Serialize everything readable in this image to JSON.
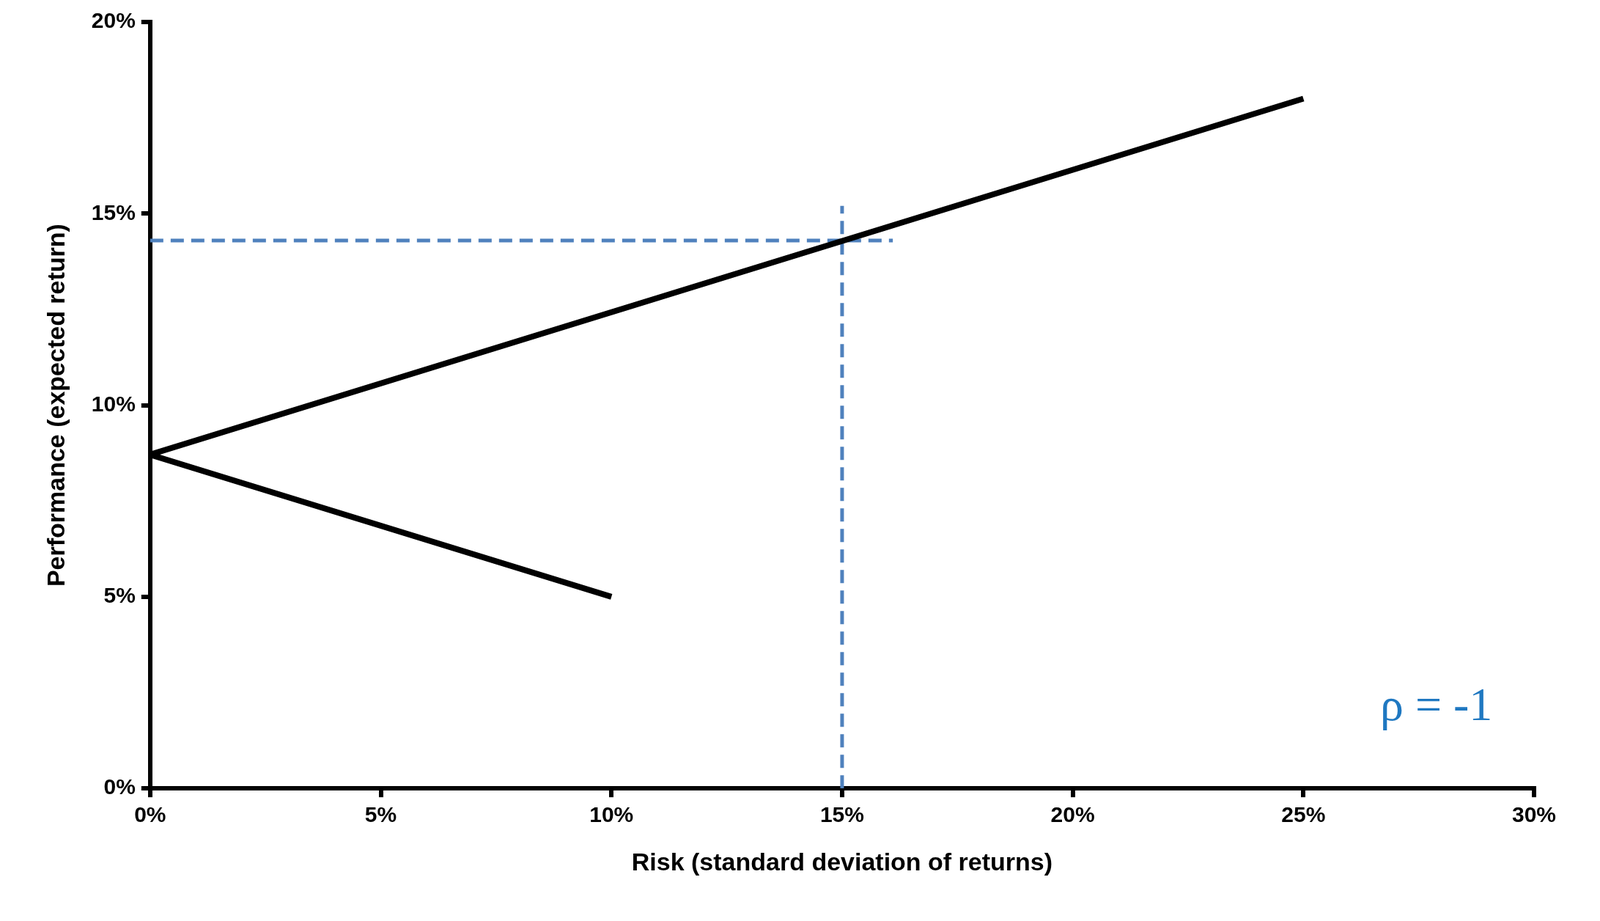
{
  "chart_data": {
    "type": "line",
    "x_label": "Risk (standard deviation of returns)",
    "y_label": "Performance (expected return)",
    "xlim": [
      0,
      30
    ],
    "ylim": [
      0,
      20
    ],
    "xticks": [
      {
        "value": 0,
        "label": "0%"
      },
      {
        "value": 5,
        "label": "5%"
      },
      {
        "value": 10,
        "label": "10%"
      },
      {
        "value": 15,
        "label": "15%"
      },
      {
        "value": 20,
        "label": "20%"
      },
      {
        "value": 25,
        "label": "25%"
      },
      {
        "value": 30,
        "label": "30%"
      }
    ],
    "yticks": [
      {
        "value": 0,
        "label": "0%"
      },
      {
        "value": 5,
        "label": "5%"
      },
      {
        "value": 10,
        "label": "10%"
      },
      {
        "value": 15,
        "label": "15%"
      },
      {
        "value": 20,
        "label": "20%"
      }
    ],
    "grid": false,
    "series": [
      {
        "color": "#000000",
        "line_style": "solid",
        "marker": "none",
        "x": [
          10,
          0,
          25
        ],
        "values": [
          5,
          8.71,
          18
        ]
      },
      {
        "color": "#4f81bd",
        "line_style": "dashed",
        "marker": "none",
        "x": [
          15,
          15
        ],
        "values": [
          0,
          15.2
        ]
      },
      {
        "color": "#4f81bd",
        "line_style": "dashed",
        "marker": "none",
        "x": [
          0,
          16.1
        ],
        "values": [
          14.3,
          14.3
        ]
      }
    ],
    "annotations": [
      {
        "text": "ρ = -1",
        "color": "#1f78c1"
      }
    ]
  }
}
